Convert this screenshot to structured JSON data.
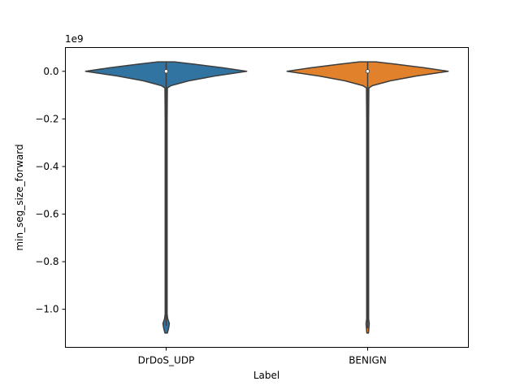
{
  "chart_data": {
    "type": "violin",
    "xlabel": "Label",
    "ylabel": "min_seg_size_forward",
    "offset_label": "1e9",
    "ylim": [
      -1.16,
      0.1
    ],
    "yticks": [
      0.0,
      -0.2,
      -0.4,
      -0.6,
      -0.8,
      -1.0
    ],
    "ytick_labels": [
      "0.0",
      "−0.2",
      "−0.4",
      "−0.6",
      "−0.8",
      "−1.0"
    ],
    "categories": [
      "DrDoS_UDP",
      "BENIGN"
    ],
    "series": [
      {
        "category": "DrDoS_UDP",
        "color": "#3274a1",
        "median": 0.0,
        "quartiles": [
          0.0,
          0.0
        ],
        "whiskers": [
          -1.07,
          0.04
        ],
        "profile": [
          [
            0.04,
            0.1
          ],
          [
            0.03,
            0.35
          ],
          [
            0.015,
            0.7
          ],
          [
            0.0,
            1.0
          ],
          [
            -0.02,
            0.6
          ],
          [
            -0.04,
            0.28
          ],
          [
            -0.06,
            0.06
          ],
          [
            -0.07,
            0.015
          ],
          [
            -0.2,
            0.012
          ],
          [
            -1.02,
            0.012
          ],
          [
            -1.04,
            0.02
          ],
          [
            -1.06,
            0.04
          ],
          [
            -1.08,
            0.03
          ],
          [
            -1.1,
            0.015
          ]
        ]
      },
      {
        "category": "BENIGN",
        "color": "#e1812c",
        "median": 0.0,
        "quartiles": [
          0.0,
          0.0
        ],
        "whiskers": [
          -1.08,
          0.04
        ],
        "profile": [
          [
            0.04,
            0.1
          ],
          [
            0.03,
            0.35
          ],
          [
            0.015,
            0.7
          ],
          [
            0.0,
            1.0
          ],
          [
            -0.02,
            0.6
          ],
          [
            -0.04,
            0.28
          ],
          [
            -0.06,
            0.06
          ],
          [
            -0.07,
            0.015
          ],
          [
            -0.2,
            0.012
          ],
          [
            -1.04,
            0.012
          ],
          [
            -1.06,
            0.02
          ],
          [
            -1.08,
            0.015
          ],
          [
            -1.1,
            0.01
          ]
        ]
      }
    ],
    "grid": false,
    "legend": "none"
  }
}
